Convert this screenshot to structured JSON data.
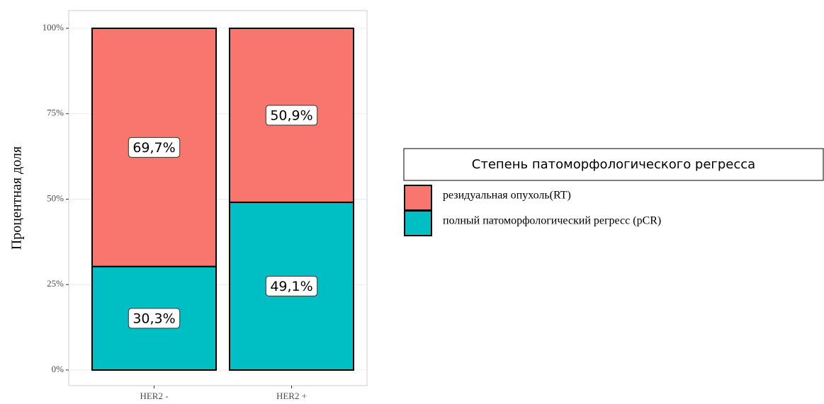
{
  "chart_data": {
    "type": "stacked_bar",
    "ylabel": "Процентная доля",
    "categories": [
      "HER2 -",
      "HER2 +"
    ],
    "series": [
      {
        "name": "полный патоморфологический регресс (pCR)",
        "color": "#00BFC4",
        "values": [
          30.3,
          49.1
        ],
        "value_labels": [
          "30,3%",
          "49,1%"
        ]
      },
      {
        "name": "резидуальная опухоль(RT)",
        "color": "#F8766D",
        "values": [
          69.7,
          50.9
        ],
        "value_labels": [
          "69,7%",
          "50,9%"
        ]
      }
    ],
    "ylim": [
      0,
      100
    ],
    "yticks": [
      {
        "value": 0,
        "label": "0%"
      },
      {
        "value": 25,
        "label": "25%"
      },
      {
        "value": 50,
        "label": "50%"
      },
      {
        "value": 75,
        "label": "75%"
      },
      {
        "value": 100,
        "label": "100%"
      }
    ],
    "grid": true,
    "legend": {
      "title": "Степень патоморфологического регресса",
      "position": "right"
    }
  }
}
